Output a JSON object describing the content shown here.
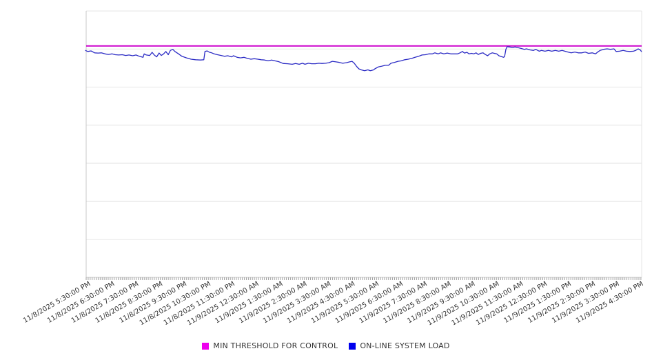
{
  "chart_data": {
    "type": "line",
    "title": "",
    "grid": true,
    "legend_position": "bottom-center",
    "x_axis": {
      "label": "",
      "tick_labels": [
        "11/8/2025 5:30:00 PM",
        "11/8/2025 6:30:00 PM",
        "11/8/2025 7:30:00 PM",
        "11/8/2025 8:30:00 PM",
        "11/8/2025 9:30:00 PM",
        "11/8/2025 10:30:00 PM",
        "11/8/2025 11:30:00 PM",
        "11/9/2025 12:30:00 AM",
        "11/9/2025 1:30:00 AM",
        "11/9/2025 2:30:00 AM",
        "11/9/2025 3:30:00 AM",
        "11/9/2025 4:30:00 AM",
        "11/9/2025 5:30:00 AM",
        "11/9/2025 6:30:00 AM",
        "11/9/2025 7:30:00 AM",
        "11/9/2025 8:30:00 AM",
        "11/9/2025 9:30:00 AM",
        "11/9/2025 10:30:00 AM",
        "11/9/2025 11:30:00 AM",
        "11/9/2025 12:30:00 PM",
        "11/9/2025 1:30:00 PM",
        "11/9/2025 2:30:00 PM",
        "11/9/2025 3:30:00 PM",
        "11/9/2025 4:30:00 PM"
      ],
      "label_rotation_deg": -30,
      "minor_tick_interval_minutes": 5
    },
    "y_axis": {
      "label": "",
      "tick_labels": [],
      "gridline_divisions": 7,
      "range_percent": [
        0,
        100
      ]
    },
    "series": [
      {
        "name": "MIN THRESHOLD FOR CONTROL",
        "type": "constant-line",
        "color": "#CC00CC",
        "value_percent": 86.9
      },
      {
        "name": "ON-LINE SYSTEM LOAD",
        "type": "line",
        "color": "#2A2AC4",
        "x_unit": "hours_after_11/8/2025 5:30:00 PM",
        "y_unit": "percent_of_plot_height",
        "points": [
          [
            -0.14,
            85.2
          ],
          [
            -0.05,
            84.8
          ],
          [
            0.09,
            85.0
          ],
          [
            0.24,
            84.3
          ],
          [
            0.38,
            84.2
          ],
          [
            0.52,
            84.3
          ],
          [
            0.67,
            83.9
          ],
          [
            0.81,
            83.7
          ],
          [
            0.96,
            83.9
          ],
          [
            1.1,
            83.6
          ],
          [
            1.24,
            83.5
          ],
          [
            1.39,
            83.6
          ],
          [
            1.53,
            83.3
          ],
          [
            1.67,
            83.5
          ],
          [
            1.82,
            83.2
          ],
          [
            1.96,
            83.5
          ],
          [
            2.1,
            83.0
          ],
          [
            2.25,
            82.6
          ],
          [
            2.3,
            83.9
          ],
          [
            2.39,
            83.5
          ],
          [
            2.53,
            83.3
          ],
          [
            2.63,
            84.5
          ],
          [
            2.72,
            83.5
          ],
          [
            2.82,
            82.8
          ],
          [
            2.92,
            84.2
          ],
          [
            3.01,
            83.3
          ],
          [
            3.11,
            83.9
          ],
          [
            3.2,
            84.8
          ],
          [
            3.3,
            83.6
          ],
          [
            3.39,
            85.2
          ],
          [
            3.49,
            85.6
          ],
          [
            3.58,
            84.8
          ],
          [
            3.73,
            83.9
          ],
          [
            3.87,
            83.0
          ],
          [
            4.06,
            82.4
          ],
          [
            4.25,
            81.9
          ],
          [
            4.44,
            81.7
          ],
          [
            4.64,
            81.6
          ],
          [
            4.78,
            81.7
          ],
          [
            4.83,
            84.8
          ],
          [
            4.92,
            85.0
          ],
          [
            5.02,
            84.5
          ],
          [
            5.11,
            84.3
          ],
          [
            5.21,
            83.9
          ],
          [
            5.35,
            83.6
          ],
          [
            5.5,
            83.3
          ],
          [
            5.64,
            83.0
          ],
          [
            5.78,
            83.2
          ],
          [
            5.93,
            82.8
          ],
          [
            6.02,
            83.2
          ],
          [
            6.17,
            82.6
          ],
          [
            6.31,
            82.4
          ],
          [
            6.45,
            82.6
          ],
          [
            6.6,
            82.2
          ],
          [
            6.74,
            81.9
          ],
          [
            6.88,
            82.1
          ],
          [
            7.03,
            81.9
          ],
          [
            7.17,
            81.7
          ],
          [
            7.31,
            81.6
          ],
          [
            7.46,
            81.3
          ],
          [
            7.6,
            81.6
          ],
          [
            7.74,
            81.3
          ],
          [
            7.89,
            81.0
          ],
          [
            8.08,
            80.3
          ],
          [
            8.27,
            80.2
          ],
          [
            8.46,
            80.0
          ],
          [
            8.6,
            80.3
          ],
          [
            8.75,
            80.0
          ],
          [
            8.89,
            80.4
          ],
          [
            8.99,
            80.0
          ],
          [
            9.13,
            80.4
          ],
          [
            9.27,
            80.2
          ],
          [
            9.42,
            80.2
          ],
          [
            9.56,
            80.4
          ],
          [
            9.7,
            80.3
          ],
          [
            9.85,
            80.4
          ],
          [
            9.99,
            80.6
          ],
          [
            10.13,
            81.1
          ],
          [
            10.28,
            80.9
          ],
          [
            10.42,
            80.7
          ],
          [
            10.56,
            80.4
          ],
          [
            10.71,
            80.6
          ],
          [
            10.85,
            80.9
          ],
          [
            10.95,
            81.1
          ],
          [
            11.04,
            80.4
          ],
          [
            11.14,
            79.2
          ],
          [
            11.23,
            78.3
          ],
          [
            11.33,
            77.9
          ],
          [
            11.47,
            77.6
          ],
          [
            11.61,
            77.9
          ],
          [
            11.71,
            77.6
          ],
          [
            11.85,
            77.9
          ],
          [
            11.9,
            78.3
          ],
          [
            12.04,
            79.0
          ],
          [
            12.19,
            79.3
          ],
          [
            12.33,
            79.6
          ],
          [
            12.47,
            79.6
          ],
          [
            12.57,
            80.4
          ],
          [
            12.71,
            80.7
          ],
          [
            12.86,
            81.1
          ],
          [
            13.0,
            81.3
          ],
          [
            13.14,
            81.7
          ],
          [
            13.29,
            81.9
          ],
          [
            13.43,
            82.2
          ],
          [
            13.57,
            82.6
          ],
          [
            13.72,
            83.0
          ],
          [
            13.86,
            83.5
          ],
          [
            14.0,
            83.6
          ],
          [
            14.15,
            83.9
          ],
          [
            14.29,
            83.9
          ],
          [
            14.39,
            84.3
          ],
          [
            14.53,
            83.9
          ],
          [
            14.63,
            84.3
          ],
          [
            14.77,
            83.9
          ],
          [
            14.91,
            84.2
          ],
          [
            15.06,
            83.9
          ],
          [
            15.2,
            83.9
          ],
          [
            15.34,
            83.9
          ],
          [
            15.44,
            84.3
          ],
          [
            15.54,
            84.8
          ],
          [
            15.63,
            84.2
          ],
          [
            15.73,
            84.5
          ],
          [
            15.82,
            83.9
          ],
          [
            15.92,
            84.1
          ],
          [
            16.01,
            83.9
          ],
          [
            16.11,
            84.3
          ],
          [
            16.2,
            83.7
          ],
          [
            16.3,
            84.1
          ],
          [
            16.4,
            84.3
          ],
          [
            16.49,
            83.7
          ],
          [
            16.59,
            83.2
          ],
          [
            16.68,
            83.9
          ],
          [
            16.78,
            84.3
          ],
          [
            16.87,
            84.1
          ],
          [
            16.97,
            83.9
          ],
          [
            17.06,
            83.2
          ],
          [
            17.16,
            82.9
          ],
          [
            17.26,
            82.6
          ],
          [
            17.3,
            83.0
          ],
          [
            17.35,
            85.6
          ],
          [
            17.4,
            86.6
          ],
          [
            17.49,
            86.5
          ],
          [
            17.64,
            86.3
          ],
          [
            17.73,
            86.5
          ],
          [
            17.83,
            86.3
          ],
          [
            17.97,
            86.0
          ],
          [
            18.12,
            85.6
          ],
          [
            18.21,
            85.8
          ],
          [
            18.35,
            85.4
          ],
          [
            18.5,
            85.2
          ],
          [
            18.59,
            85.6
          ],
          [
            18.74,
            84.9
          ],
          [
            18.83,
            85.2
          ],
          [
            18.98,
            84.9
          ],
          [
            19.12,
            85.2
          ],
          [
            19.26,
            84.9
          ],
          [
            19.41,
            85.2
          ],
          [
            19.55,
            84.9
          ],
          [
            19.69,
            85.2
          ],
          [
            19.84,
            84.8
          ],
          [
            19.93,
            84.6
          ],
          [
            20.07,
            84.3
          ],
          [
            20.22,
            84.6
          ],
          [
            20.36,
            84.3
          ],
          [
            20.51,
            84.3
          ],
          [
            20.65,
            84.6
          ],
          [
            20.79,
            84.1
          ],
          [
            20.94,
            84.3
          ],
          [
            21.08,
            83.9
          ],
          [
            21.17,
            84.6
          ],
          [
            21.27,
            85.2
          ],
          [
            21.42,
            85.6
          ],
          [
            21.56,
            85.8
          ],
          [
            21.7,
            85.6
          ],
          [
            21.85,
            85.8
          ],
          [
            21.94,
            84.8
          ],
          [
            22.08,
            84.9
          ],
          [
            22.23,
            85.2
          ],
          [
            22.37,
            84.9
          ],
          [
            22.51,
            84.8
          ],
          [
            22.66,
            84.9
          ],
          [
            22.75,
            85.2
          ],
          [
            22.85,
            85.8
          ],
          [
            22.94,
            85.4
          ],
          [
            22.99,
            84.8
          ]
        ]
      }
    ]
  },
  "legend": {
    "items": [
      {
        "label": "MIN THRESHOLD FOR CONTROL",
        "color": "#EE00EE"
      },
      {
        "label": "ON-LINE SYSTEM LOAD",
        "color": "#0000EE"
      }
    ]
  },
  "colors": {
    "gridline": "#e5e5e5",
    "axis": "#c8c8c8",
    "minor_tick": "#a0a0a0",
    "tick_label": "#333333",
    "background": "#ffffff"
  }
}
